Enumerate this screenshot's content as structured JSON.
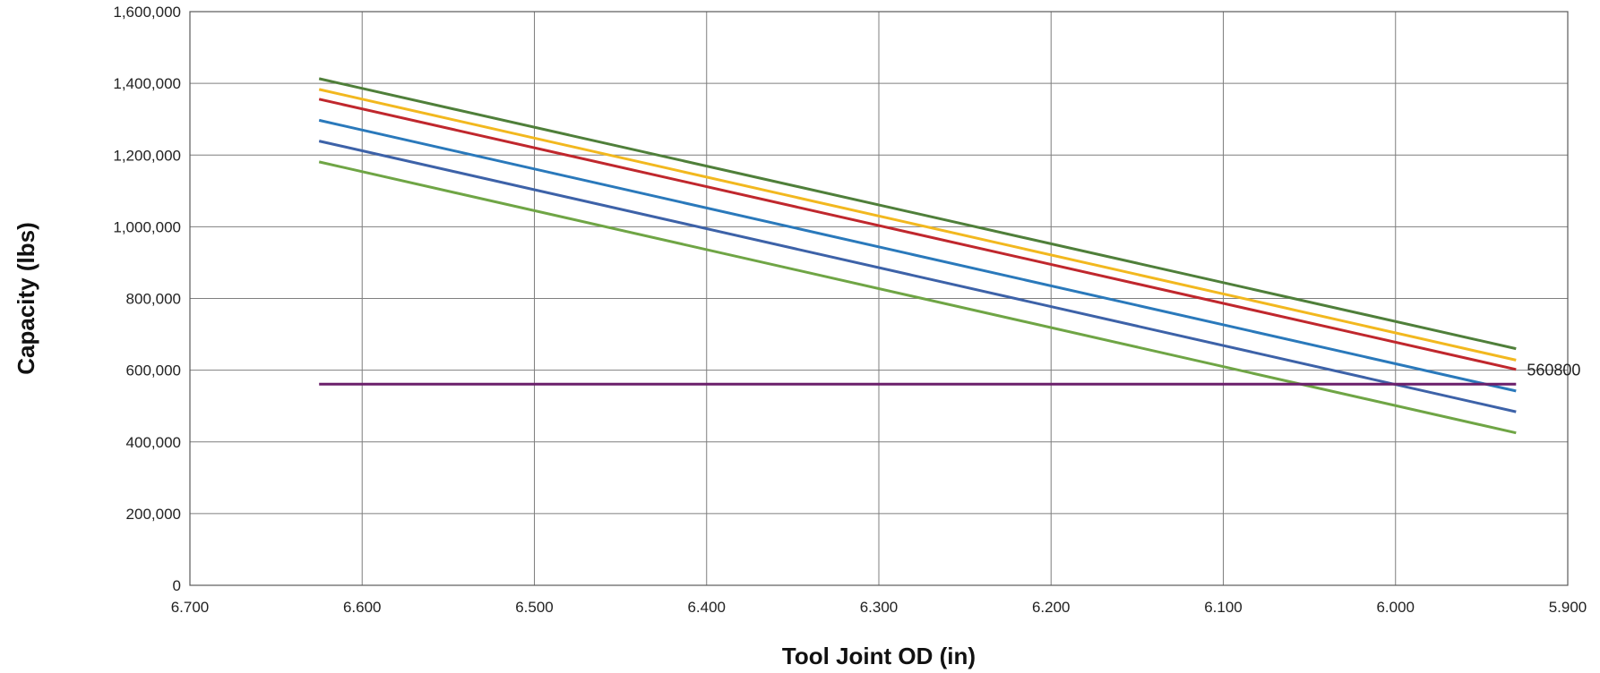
{
  "chart_data": {
    "type": "line",
    "title": "",
    "xlabel": "Tool Joint OD  (in)",
    "ylabel": "Capacity  (lbs)",
    "x_reversed": true,
    "xlim": [
      6.7,
      5.9
    ],
    "ylim": [
      0,
      1600000
    ],
    "x_ticks": [
      6.7,
      6.6,
      6.5,
      6.4,
      6.3,
      6.2,
      6.1,
      6.0,
      5.9
    ],
    "x_tick_labels": [
      "6.700",
      "6.600",
      "6.500",
      "6.400",
      "6.300",
      "6.200",
      "6.100",
      "6.000",
      "5.900"
    ],
    "y_ticks": [
      0,
      200000,
      400000,
      600000,
      800000,
      1000000,
      1200000,
      1400000,
      1600000
    ],
    "y_tick_labels": [
      "0",
      "200,000",
      "400,000",
      "600,000",
      "800,000",
      "1,000,000",
      "1,200,000",
      "1,400,000",
      "1,600,000"
    ],
    "grid": true,
    "legend": "none",
    "series": [
      {
        "color": "#4f7f3a",
        "x": [
          6.625,
          5.93
        ],
        "values": [
          1413000,
          660000
        ]
      },
      {
        "color": "#f2b81f",
        "x": [
          6.625,
          5.93
        ],
        "values": [
          1383000,
          628000
        ]
      },
      {
        "color": "#c0272d",
        "x": [
          6.625,
          5.93
        ],
        "values": [
          1356000,
          602000
        ]
      },
      {
        "color": "#2a79bb",
        "x": [
          6.625,
          5.93
        ],
        "values": [
          1297000,
          542000
        ]
      },
      {
        "color": "#3d62a8",
        "x": [
          6.625,
          5.93
        ],
        "values": [
          1239000,
          484000
        ]
      },
      {
        "color": "#6fa545",
        "x": [
          6.625,
          5.93
        ],
        "values": [
          1181000,
          425000
        ]
      },
      {
        "color": "#6b1f6b",
        "x": [
          6.625,
          5.93
        ],
        "values": [
          560800,
          560800
        ]
      }
    ],
    "annotations": [
      {
        "text": "560800",
        "x": 5.93,
        "y": 560800
      }
    ]
  }
}
